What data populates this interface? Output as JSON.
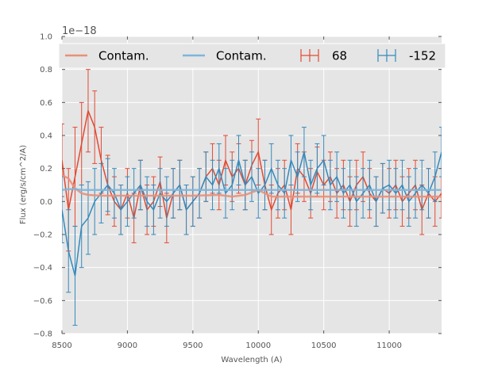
{
  "chart_data": {
    "type": "line",
    "title": "",
    "xlabel": "Wavelength (A)",
    "ylabel": "Flux (erg/s/cm^2/A)",
    "offset_label": "1e−18",
    "xlim": [
      8500,
      11400
    ],
    "ylim": [
      -0.8,
      1.0
    ],
    "xticks": [
      8500,
      9000,
      9500,
      10000,
      10500,
      11000
    ],
    "yticks": [
      -0.8,
      -0.6,
      -0.4,
      -0.2,
      0.0,
      0.2,
      0.4,
      0.6,
      0.8,
      1.0
    ],
    "ytick_labels": [
      "−0.8",
      "−0.6",
      "−0.4",
      "−0.2",
      "0.0",
      "0.2",
      "0.4",
      "0.6",
      "0.8",
      "1.0"
    ],
    "grid": true,
    "legend": {
      "placement": "top",
      "entries": [
        {
          "label": "Contam.",
          "kind": "line",
          "color": "#E88F7A"
        },
        {
          "label": "Contam.",
          "kind": "line",
          "color": "#7FB5D9"
        },
        {
          "label": "68",
          "kind": "errorbar",
          "color": "#E24A33"
        },
        {
          "label": "-152",
          "kind": "errorbar",
          "color": "#348ABD"
        }
      ]
    },
    "series": [
      {
        "name": "68",
        "kind": "errorbar",
        "color": "#E24A33",
        "x": [
          8500,
          8550,
          8600,
          8650,
          8700,
          8750,
          8800,
          8850,
          8900,
          8950,
          9000,
          9050,
          9100,
          9150,
          9200,
          9250,
          9300,
          9350,
          9400,
          9450,
          9500,
          9550,
          9600,
          9650,
          9700,
          9750,
          9800,
          9850,
          9900,
          9950,
          10000,
          10050,
          10100,
          10150,
          10200,
          10250,
          10300,
          10350,
          10400,
          10450,
          10500,
          10550,
          10600,
          10650,
          10700,
          10750,
          10800,
          10850,
          10900,
          10950,
          11000,
          11050,
          11100,
          11150,
          11200,
          11250,
          11300,
          11350,
          11400
        ],
        "y": [
          0.25,
          -0.05,
          0.15,
          0.35,
          0.55,
          0.45,
          0.25,
          0.1,
          0.0,
          -0.05,
          0.05,
          -0.1,
          0.1,
          -0.05,
          0.0,
          0.12,
          -0.1,
          0.05,
          0.1,
          -0.05,
          0.0,
          0.05,
          0.15,
          0.2,
          0.1,
          0.25,
          0.15,
          0.2,
          0.1,
          0.22,
          0.3,
          0.1,
          -0.05,
          0.05,
          0.1,
          -0.05,
          0.2,
          0.15,
          0.05,
          0.18,
          0.1,
          0.15,
          0.05,
          0.1,
          0.0,
          0.1,
          0.15,
          0.05,
          0.0,
          0.08,
          0.05,
          0.1,
          0.0,
          0.05,
          0.1,
          -0.05,
          0.05,
          0.0,
          0.05
        ],
        "err": [
          0.22,
          0.25,
          0.3,
          0.25,
          0.25,
          0.22,
          0.2,
          0.18,
          0.15,
          0.15,
          0.15,
          0.15,
          0.15,
          0.15,
          0.15,
          0.15,
          0.15,
          0.15,
          0.15,
          0.15,
          0.15,
          0.15,
          0.15,
          0.15,
          0.15,
          0.15,
          0.15,
          0.15,
          0.15,
          0.15,
          0.2,
          0.15,
          0.15,
          0.15,
          0.15,
          0.15,
          0.15,
          0.15,
          0.15,
          0.15,
          0.15,
          0.15,
          0.15,
          0.15,
          0.15,
          0.15,
          0.15,
          0.15,
          0.15,
          0.15,
          0.15,
          0.15,
          0.15,
          0.15,
          0.15,
          0.15,
          0.15,
          0.15,
          0.15
        ]
      },
      {
        "name": "-152",
        "kind": "errorbar",
        "color": "#348ABD",
        "x": [
          8500,
          8550,
          8600,
          8650,
          8700,
          8750,
          8800,
          8850,
          8900,
          8950,
          9000,
          9050,
          9100,
          9150,
          9200,
          9250,
          9300,
          9350,
          9400,
          9450,
          9500,
          9550,
          9600,
          9650,
          9700,
          9750,
          9800,
          9850,
          9900,
          9950,
          10000,
          10050,
          10100,
          10150,
          10200,
          10250,
          10300,
          10350,
          10400,
          10450,
          10500,
          10550,
          10600,
          10650,
          10700,
          10750,
          10800,
          10850,
          10900,
          10950,
          11000,
          11050,
          11100,
          11150,
          11200,
          11250,
          11300,
          11350,
          11400
        ],
        "y": [
          -0.05,
          -0.3,
          -0.45,
          -0.15,
          -0.1,
          0.0,
          0.05,
          0.1,
          0.05,
          -0.05,
          0.0,
          0.05,
          0.1,
          0.0,
          -0.05,
          0.05,
          0.0,
          0.05,
          0.1,
          -0.05,
          0.0,
          0.05,
          0.15,
          0.1,
          0.2,
          0.05,
          0.1,
          0.25,
          0.1,
          0.15,
          0.05,
          0.1,
          0.2,
          0.1,
          0.05,
          0.25,
          0.15,
          0.3,
          0.1,
          0.2,
          0.25,
          0.1,
          0.15,
          0.05,
          0.1,
          0.0,
          0.05,
          0.1,
          0.0,
          0.08,
          0.1,
          0.05,
          0.1,
          0.0,
          0.05,
          0.1,
          0.05,
          0.15,
          0.3
        ],
        "err": [
          0.2,
          0.25,
          0.3,
          0.25,
          0.22,
          0.2,
          0.18,
          0.16,
          0.15,
          0.15,
          0.15,
          0.15,
          0.15,
          0.15,
          0.15,
          0.15,
          0.15,
          0.15,
          0.15,
          0.15,
          0.15,
          0.15,
          0.15,
          0.15,
          0.15,
          0.15,
          0.15,
          0.15,
          0.15,
          0.15,
          0.15,
          0.15,
          0.15,
          0.15,
          0.15,
          0.15,
          0.15,
          0.15,
          0.15,
          0.15,
          0.15,
          0.15,
          0.15,
          0.15,
          0.15,
          0.15,
          0.15,
          0.15,
          0.15,
          0.15,
          0.15,
          0.15,
          0.15,
          0.15,
          0.15,
          0.15,
          0.15,
          0.15,
          0.15
        ]
      },
      {
        "name": "Contam.",
        "kind": "line",
        "color": "#E88F7A",
        "x": [
          8500,
          8550,
          8600,
          8650,
          8700,
          8800,
          9000,
          9500,
          9700,
          9800,
          9900,
          10000,
          10100,
          10500,
          11000,
          11400
        ],
        "y": [
          0.16,
          0.14,
          0.08,
          0.05,
          0.04,
          0.035,
          0.035,
          0.035,
          0.04,
          0.03,
          0.04,
          0.07,
          0.03,
          0.03,
          0.03,
          0.03
        ]
      },
      {
        "name": "Contam.",
        "kind": "line",
        "color": "#7FB5D9",
        "x": [
          8500,
          8550,
          8600,
          8650,
          8700,
          9000,
          9500,
          10000,
          10500,
          11000,
          11400
        ],
        "y": [
          0.07,
          0.075,
          0.075,
          0.07,
          0.07,
          0.07,
          0.07,
          0.07,
          0.07,
          0.07,
          0.07
        ]
      }
    ]
  }
}
